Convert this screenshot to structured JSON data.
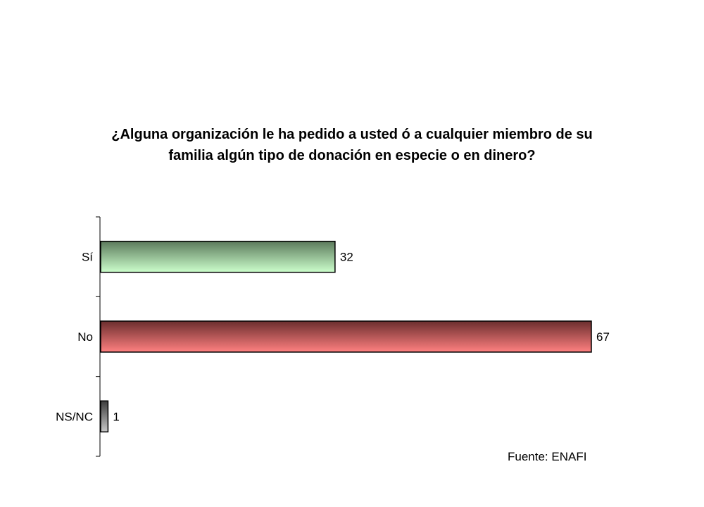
{
  "chart_data": {
    "type": "bar",
    "orientation": "horizontal",
    "title_lines": [
      "¿Alguna organización le ha pedido a usted ó a cualquier miembro de su",
      "familia algún tipo de donación en especie o en dinero?"
    ],
    "categories": [
      "Sí",
      "No",
      "NS/NC"
    ],
    "values": [
      32,
      67,
      1
    ],
    "xlim": [
      0,
      67
    ],
    "grid": false,
    "legend": "none",
    "bar_colors": [
      {
        "top": "#5c7a5c",
        "bottom": "#ccffcc"
      },
      {
        "top": "#6b2e2e",
        "bottom": "#ff8080"
      },
      {
        "top": "#3c3c3c",
        "bottom": "#c8c8c8"
      }
    ]
  },
  "source_note": "Fuente: ENAFI"
}
